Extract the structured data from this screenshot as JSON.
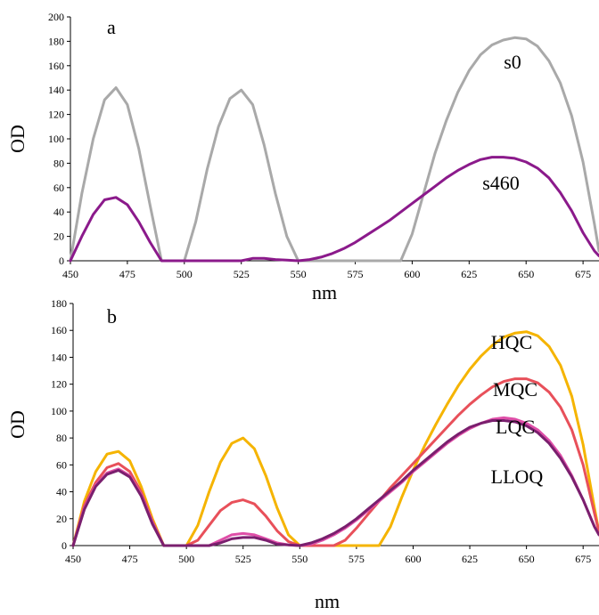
{
  "chart_data": [
    {
      "panel": "a",
      "type": "line",
      "xlabel": "nm",
      "ylabel": "OD",
      "xlim": [
        450,
        682
      ],
      "ylim": [
        0,
        200
      ],
      "xticks": [
        450,
        475,
        500,
        525,
        550,
        575,
        600,
        625,
        650,
        675
      ],
      "yticks": [
        0,
        20,
        40,
        60,
        80,
        100,
        120,
        140,
        160,
        180,
        200
      ],
      "grid": false,
      "series": [
        {
          "name": "s0",
          "color": "#a9a9a9",
          "x": [
            450,
            455,
            460,
            465,
            470,
            475,
            480,
            485,
            490,
            495,
            500,
            505,
            510,
            515,
            520,
            525,
            530,
            535,
            540,
            545,
            550,
            555,
            560,
            565,
            570,
            575,
            580,
            585,
            590,
            595,
            600,
            605,
            610,
            615,
            620,
            625,
            630,
            635,
            640,
            645,
            650,
            655,
            660,
            665,
            670,
            675,
            680,
            682
          ],
          "y": [
            0,
            55,
            100,
            132,
            142,
            128,
            92,
            45,
            0,
            0,
            0,
            32,
            75,
            110,
            133,
            140,
            128,
            95,
            55,
            20,
            0,
            0,
            0,
            0,
            0,
            0,
            0,
            0,
            0,
            0,
            22,
            55,
            88,
            115,
            138,
            156,
            169,
            177,
            181,
            183,
            182,
            176,
            164,
            146,
            119,
            81,
            30,
            8
          ]
        },
        {
          "name": "s460",
          "color": "#8b1a8b",
          "x": [
            450,
            455,
            460,
            465,
            470,
            475,
            480,
            485,
            490,
            495,
            500,
            505,
            510,
            515,
            520,
            525,
            530,
            535,
            540,
            545,
            550,
            555,
            560,
            565,
            570,
            575,
            580,
            585,
            590,
            595,
            600,
            605,
            610,
            615,
            620,
            625,
            630,
            635,
            640,
            645,
            650,
            655,
            660,
            665,
            670,
            675,
            680,
            682
          ],
          "y": [
            0,
            20,
            38,
            50,
            52,
            46,
            32,
            15,
            0,
            0,
            0,
            0,
            0,
            0,
            0,
            0,
            2,
            2,
            1,
            0.5,
            0,
            1,
            3,
            6,
            10,
            15,
            21,
            27,
            33,
            40,
            47,
            54,
            61,
            68,
            74,
            79,
            83,
            85,
            85,
            84,
            81,
            76,
            68,
            56,
            41,
            23,
            8,
            4
          ]
        }
      ],
      "annotations": [
        "a",
        "s0",
        "s460"
      ]
    },
    {
      "panel": "b",
      "type": "line",
      "xlabel": "nm",
      "ylabel": "OD",
      "xlim": [
        450,
        682
      ],
      "ylim": [
        0,
        180
      ],
      "xticks": [
        450,
        475,
        500,
        525,
        550,
        575,
        600,
        625,
        650,
        675
      ],
      "yticks": [
        0,
        20,
        40,
        60,
        80,
        100,
        120,
        140,
        160,
        180
      ],
      "grid": false,
      "series": [
        {
          "name": "HQC",
          "color": "#f5b400",
          "x": [
            450,
            455,
            460,
            465,
            470,
            475,
            480,
            485,
            490,
            495,
            500,
            505,
            510,
            515,
            520,
            525,
            530,
            535,
            540,
            545,
            550,
            555,
            560,
            565,
            570,
            575,
            580,
            585,
            590,
            595,
            600,
            605,
            610,
            615,
            620,
            625,
            630,
            635,
            640,
            645,
            650,
            655,
            660,
            665,
            670,
            675,
            680,
            682
          ],
          "y": [
            0,
            33,
            55,
            68,
            70,
            63,
            44,
            20,
            0,
            0,
            0,
            15,
            40,
            62,
            76,
            80,
            72,
            52,
            28,
            8,
            0,
            0,
            0,
            0,
            0,
            0,
            0,
            0,
            14,
            36,
            56,
            74,
            90,
            105,
            119,
            131,
            141,
            149,
            155,
            158,
            159,
            156,
            148,
            134,
            111,
            75,
            28,
            10
          ]
        },
        {
          "name": "MQC",
          "color": "#e8505a",
          "x": [
            450,
            455,
            460,
            465,
            470,
            475,
            480,
            485,
            490,
            495,
            500,
            505,
            510,
            515,
            520,
            525,
            530,
            535,
            540,
            545,
            550,
            555,
            560,
            565,
            570,
            575,
            580,
            585,
            590,
            595,
            600,
            605,
            610,
            615,
            620,
            625,
            630,
            635,
            640,
            645,
            650,
            655,
            660,
            665,
            670,
            675,
            680,
            682
          ],
          "y": [
            0,
            30,
            47,
            58,
            61,
            55,
            40,
            18,
            0,
            0,
            0,
            4,
            15,
            26,
            32,
            34,
            31,
            22,
            11,
            3,
            0,
            0,
            0,
            0,
            4,
            13,
            23,
            33,
            43,
            52,
            61,
            70,
            79,
            88,
            97,
            105,
            112,
            118,
            122,
            124,
            124,
            121,
            114,
            103,
            86,
            60,
            24,
            10
          ]
        },
        {
          "name": "LQC",
          "color": "#df4fa8",
          "x": [
            450,
            455,
            460,
            465,
            470,
            475,
            480,
            485,
            490,
            495,
            500,
            505,
            510,
            515,
            520,
            525,
            530,
            535,
            540,
            545,
            550,
            555,
            560,
            565,
            570,
            575,
            580,
            585,
            590,
            595,
            600,
            605,
            610,
            615,
            620,
            625,
            630,
            635,
            640,
            645,
            650,
            655,
            660,
            665,
            670,
            675,
            680,
            682
          ],
          "y": [
            0,
            28,
            45,
            54,
            57,
            52,
            38,
            17,
            0,
            0,
            0,
            0,
            0,
            4,
            8,
            9,
            8,
            5,
            2,
            0.5,
            0,
            1,
            4,
            8,
            13,
            19,
            26,
            33,
            40,
            47,
            55,
            62,
            69,
            76,
            82,
            87,
            91,
            94,
            95,
            94,
            91,
            86,
            78,
            67,
            52,
            34,
            14,
            8
          ]
        },
        {
          "name": "LLOQ",
          "color": "#7a1f6e",
          "x": [
            450,
            455,
            460,
            465,
            470,
            475,
            480,
            485,
            490,
            495,
            500,
            505,
            510,
            515,
            520,
            525,
            530,
            535,
            540,
            545,
            550,
            555,
            560,
            565,
            570,
            575,
            580,
            585,
            590,
            595,
            600,
            605,
            610,
            615,
            620,
            625,
            630,
            635,
            640,
            645,
            650,
            655,
            660,
            665,
            670,
            675,
            680,
            682
          ],
          "y": [
            0,
            27,
            44,
            53,
            56,
            51,
            37,
            16,
            0,
            0,
            0,
            0,
            0,
            2,
            5,
            6,
            6,
            4,
            1,
            0.5,
            0,
            2,
            5,
            9,
            14,
            20,
            27,
            34,
            41,
            48,
            56,
            63,
            70,
            77,
            83,
            88,
            91,
            93,
            93,
            92,
            89,
            84,
            76,
            65,
            51,
            34,
            14,
            8
          ]
        }
      ],
      "annotations": [
        "b",
        "HQC",
        "MQC",
        "LQC",
        "LLOQ"
      ]
    }
  ]
}
